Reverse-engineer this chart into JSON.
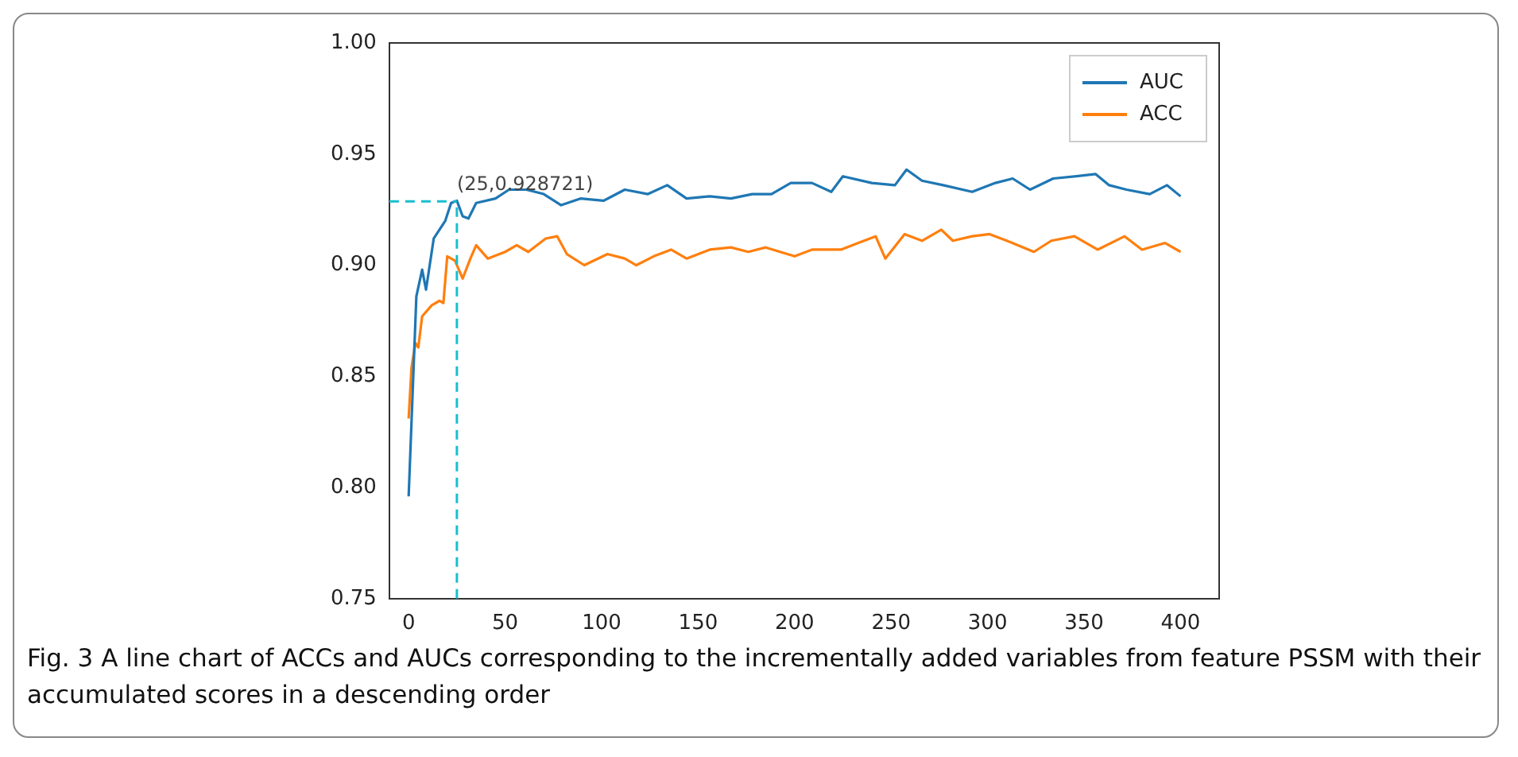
{
  "chart_data": {
    "type": "line",
    "xlim": [
      -10,
      420
    ],
    "xticks": [
      0,
      50,
      100,
      150,
      200,
      250,
      300,
      350,
      400
    ],
    "ylim": [
      0.75,
      1.0
    ],
    "yticks": [
      {
        "value": 0.75,
        "label": "0.75"
      },
      {
        "value": 0.8,
        "label": "0.80"
      },
      {
        "value": 0.85,
        "label": "0.85"
      },
      {
        "value": 0.9,
        "label": "0.90"
      },
      {
        "value": 0.95,
        "label": "0.95"
      },
      {
        "value": 1.0,
        "label": "1.00"
      }
    ],
    "legend": "top right",
    "grid": false,
    "marker": "none",
    "line_style": "solid",
    "series": [
      {
        "name": "AUC",
        "color": "#1f77b4",
        "x": [
          0,
          4,
          7,
          9,
          13,
          19,
          22,
          25,
          28,
          31,
          35,
          45,
          52,
          61,
          70,
          79,
          89,
          101,
          112,
          124,
          134,
          144,
          156,
          167,
          178,
          188,
          198,
          209,
          219,
          225,
          240,
          252,
          258,
          266,
          277,
          292,
          304,
          313,
          322,
          334,
          346,
          356,
          363,
          372,
          384,
          393,
          400
        ],
        "values": [
          0.796,
          0.886,
          0.898,
          0.889,
          0.912,
          0.92,
          0.928,
          0.929,
          0.922,
          0.921,
          0.928,
          0.93,
          0.934,
          0.934,
          0.932,
          0.927,
          0.93,
          0.929,
          0.934,
          0.932,
          0.936,
          0.93,
          0.931,
          0.93,
          0.932,
          0.932,
          0.937,
          0.937,
          0.933,
          0.94,
          0.937,
          0.936,
          0.943,
          0.938,
          0.936,
          0.933,
          0.937,
          0.939,
          0.934,
          0.939,
          0.94,
          0.941,
          0.936,
          0.934,
          0.932,
          0.936,
          0.931
        ]
      },
      {
        "name": "ACC",
        "color": "#ff7f0e",
        "x": [
          0,
          1.5,
          3.5,
          5,
          7,
          12,
          16,
          18,
          20,
          24,
          28,
          32,
          35,
          41,
          50,
          56,
          62,
          71,
          77,
          82,
          91,
          103,
          112,
          118,
          127,
          136,
          144,
          156,
          167,
          176,
          185,
          200,
          209,
          224,
          233,
          242,
          247,
          257,
          266,
          276,
          282,
          292,
          301,
          310,
          324,
          333,
          345,
          357,
          371,
          380,
          392,
          400
        ],
        "values": [
          0.831,
          0.854,
          0.865,
          0.863,
          0.877,
          0.882,
          0.884,
          0.883,
          0.904,
          0.902,
          0.894,
          0.903,
          0.909,
          0.903,
          0.906,
          0.909,
          0.906,
          0.912,
          0.913,
          0.905,
          0.9,
          0.905,
          0.903,
          0.9,
          0.904,
          0.907,
          0.903,
          0.907,
          0.908,
          0.906,
          0.908,
          0.904,
          0.907,
          0.907,
          0.91,
          0.913,
          0.903,
          0.914,
          0.911,
          0.916,
          0.911,
          0.913,
          0.914,
          0.911,
          0.906,
          0.911,
          0.913,
          0.907,
          0.913,
          0.907,
          0.91,
          0.906
        ]
      }
    ],
    "ref_lines": [
      {
        "axis": "x",
        "value": 25,
        "color": "#17becf",
        "line_style": "dashed"
      },
      {
        "axis": "y",
        "value": 0.928721,
        "color": "#17becf",
        "line_style": "dashed"
      }
    ],
    "annotations": [
      {
        "text": "(25,0.928721)",
        "x": 25,
        "y": 0.928721
      },
      "Fig. 3  A line chart of ACCs and AUCs corresponding to the incrementally added variables from feature PSSM with their accumulated scores in a descending order"
    ]
  }
}
